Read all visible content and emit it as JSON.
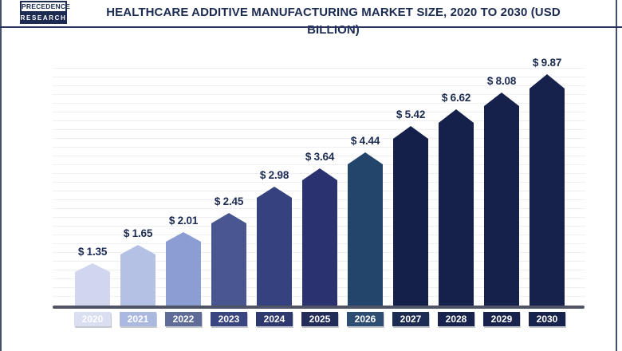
{
  "header": {
    "logo": {
      "line1": "PRECEDENCE",
      "line2": "RESEARCH"
    },
    "title": "HEALTHCARE ADDITIVE MANUFACTURING MARKET SIZE, 2020 TO 2030 (USD BILLION)"
  },
  "chart_data": {
    "type": "bar",
    "title": "Healthcare Additive Manufacturing Market Size, 2020 to 2030 (USD Billion)",
    "unit": "USD Billion",
    "categories": [
      "2020",
      "2021",
      "2022",
      "2023",
      "2024",
      "2025",
      "2026",
      "2027",
      "2028",
      "2029",
      "2030"
    ],
    "values": [
      1.35,
      1.65,
      2.01,
      2.45,
      2.98,
      3.64,
      4.44,
      5.42,
      6.62,
      8.08,
      9.87
    ],
    "value_labels": [
      "$ 1.35",
      "$ 1.65",
      "$ 2.01",
      "$ 2.45",
      "$ 2.98",
      "$ 3.64",
      "$ 4.44",
      "$ 5.42",
      "$ 6.62",
      "$ 8.08",
      "$ 9.87"
    ],
    "xlabel": "",
    "ylabel": "",
    "ylim": [
      0,
      10
    ],
    "grid": "horizontal-light",
    "legend": "none",
    "bar_shape": "pentagon-arrow-top",
    "bar_colors": [
      "#cfd6ed",
      "#b4c0e4",
      "#8c9dd3",
      "#4a5690",
      "#364180",
      "#2a336f",
      "#23456b",
      "#15204a",
      "#16214b",
      "#16214b",
      "#16224c"
    ],
    "year_box_colors": [
      "#d9def1",
      "#abb8e0",
      "#5e6c97",
      "#3a4680",
      "#2e3a6f",
      "#232d59",
      "#2e4d72",
      "#1c2c52",
      "#17234c",
      "#17234c",
      "#17234c"
    ]
  },
  "colors": {
    "title": "#1c2b52",
    "divider": "#2a3460",
    "axis_line": "#4e5366",
    "gridline": "#edeff2",
    "value_label": "#1c2b52",
    "year_text": "#ffffff",
    "background": "#ffffff",
    "frame_border": "#454f6e"
  }
}
